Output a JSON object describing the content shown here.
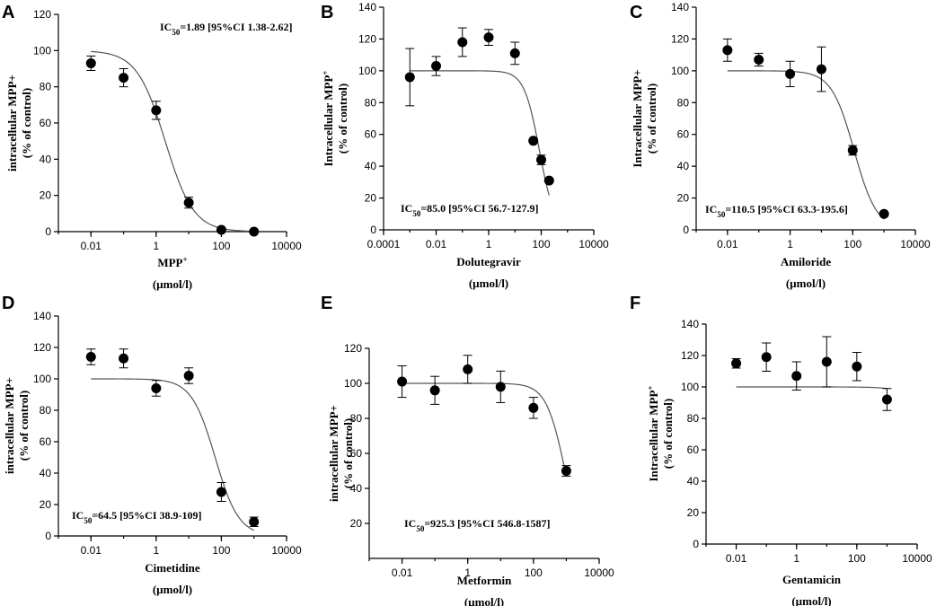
{
  "chart_data": [
    {
      "panel": "A",
      "type": "scatter",
      "xlabel": "MPP",
      "xlabel_sup": "+",
      "xlabel_unit": "(µmol/l)",
      "ylabel_line1": "intracellular MPP+",
      "ylabel_line1_sup": "",
      "ylabel_line2": "(% of control)",
      "ylim": [
        0,
        120
      ],
      "yticks": [
        "0",
        "20",
        "40",
        "60",
        "80",
        "100",
        "120"
      ],
      "xticks": [
        "0.01",
        "1",
        "100",
        "10000"
      ],
      "annotation": {
        "pre": "IC",
        "sub": "50",
        "post": "=1.89 [95%CI 1.38-2.62]"
      },
      "points": [
        {
          "x": 0.01,
          "y": 93,
          "err": 4
        },
        {
          "x": 0.1,
          "y": 85,
          "err": 5
        },
        {
          "x": 1,
          "y": 67,
          "err": 5
        },
        {
          "x": 10,
          "y": 16,
          "err": 3
        },
        {
          "x": 100,
          "y": 1,
          "err": 1
        },
        {
          "x": 1000,
          "y": 0,
          "err": 0
        }
      ],
      "fit": {
        "top": 100,
        "bottom": 0,
        "ic50": 1.89,
        "hill": 1.0
      }
    },
    {
      "panel": "B",
      "type": "scatter",
      "xlabel": "Dolutegravir",
      "xlabel_sup": "",
      "xlabel_unit": "(µmol/l)",
      "ylabel_line1": "Intracellular MPP",
      "ylabel_line1_sup": "+",
      "ylabel_line2": "(% of control)",
      "ylim": [
        0,
        140
      ],
      "yticks": [
        "0",
        "20",
        "40",
        "60",
        "80",
        "100",
        "120",
        "140"
      ],
      "xticks": [
        "0.0001",
        "0.01",
        "1",
        "100",
        "10000"
      ],
      "annotation": {
        "pre": "IC",
        "sub": "50",
        "post": "=85.0 [95%CI 56.7-127.9]"
      },
      "points": [
        {
          "x": 0.001,
          "y": 96,
          "err": 18
        },
        {
          "x": 0.01,
          "y": 103,
          "err": 6
        },
        {
          "x": 0.1,
          "y": 118,
          "err": 9
        },
        {
          "x": 1,
          "y": 121,
          "err": 5
        },
        {
          "x": 10,
          "y": 111,
          "err": 7
        },
        {
          "x": 50,
          "y": 56,
          "err": 0
        },
        {
          "x": 100,
          "y": 44,
          "err": 3
        },
        {
          "x": 200,
          "y": 31,
          "err": 0
        }
      ],
      "fit": {
        "top": 100,
        "bottom": 0,
        "ic50": 85.0,
        "hill": 1.5
      }
    },
    {
      "panel": "C",
      "type": "scatter",
      "xlabel": "Amiloride",
      "xlabel_sup": "",
      "xlabel_unit": "(µmol/l)",
      "ylabel_line1": "Intracellular MPP+",
      "ylabel_line1_sup": "",
      "ylabel_line2": "(% of control)",
      "ylim": [
        0,
        140
      ],
      "yticks": [
        "0",
        "20",
        "40",
        "60",
        "80",
        "100",
        "120",
        "140"
      ],
      "xticks": [
        "0.01",
        "1",
        "100",
        "10000"
      ],
      "annotation": {
        "pre": "IC",
        "sub": "50",
        "post": "=110.5 [95%CI 63.3-195.6]"
      },
      "points": [
        {
          "x": 0.01,
          "y": 113,
          "err": 7
        },
        {
          "x": 0.1,
          "y": 107,
          "err": 4
        },
        {
          "x": 1,
          "y": 98,
          "err": 8
        },
        {
          "x": 10,
          "y": 101,
          "err": 14
        },
        {
          "x": 100,
          "y": 50,
          "err": 3
        },
        {
          "x": 1000,
          "y": 10,
          "err": 0
        }
      ],
      "fit": {
        "top": 100,
        "bottom": 0,
        "ic50": 110.5,
        "hill": 1.2
      }
    },
    {
      "panel": "D",
      "type": "scatter",
      "xlabel": "Cimetidine",
      "xlabel_sup": "",
      "xlabel_unit": "(µmol/l)",
      "ylabel_line1": "intracellular MPP+",
      "ylabel_line1_sup": "",
      "ylabel_line2": "(% of control)",
      "ylim": [
        0,
        140
      ],
      "yticks": [
        "0",
        "20",
        "40",
        "60",
        "80",
        "100",
        "120",
        "140"
      ],
      "xticks": [
        "0.01",
        "1",
        "100",
        "10000"
      ],
      "annotation": {
        "pre": "IC",
        "sub": "50",
        "post": "=64.5 [95%CI 38.9-109]"
      },
      "points": [
        {
          "x": 0.01,
          "y": 114,
          "err": 5
        },
        {
          "x": 0.1,
          "y": 113,
          "err": 6
        },
        {
          "x": 1,
          "y": 94,
          "err": 5
        },
        {
          "x": 10,
          "y": 102,
          "err": 5
        },
        {
          "x": 100,
          "y": 28,
          "err": 6
        },
        {
          "x": 1000,
          "y": 9,
          "err": 3
        }
      ],
      "fit": {
        "top": 100,
        "bottom": 0,
        "ic50": 64.5,
        "hill": 1.2
      }
    },
    {
      "panel": "E",
      "type": "scatter",
      "xlabel": "Metformin",
      "xlabel_sup": "",
      "xlabel_unit": "(µmol/l)",
      "ylabel_line1": "intracellular MPP+",
      "ylabel_line1_sup": "",
      "ylabel_line2": "(% of control)",
      "ylim": [
        0,
        120
      ],
      "yticks": [
        "20",
        "40",
        "60",
        "80",
        "100",
        "120"
      ],
      "xticks": [
        "0.01",
        "1",
        "100",
        "10000"
      ],
      "annotation": {
        "pre": "IC",
        "sub": "50",
        "post": "=925.3 [95%CI 546.8-1587]"
      },
      "points": [
        {
          "x": 0.01,
          "y": 101,
          "err": 9
        },
        {
          "x": 0.1,
          "y": 96,
          "err": 8
        },
        {
          "x": 1,
          "y": 108,
          "err": 8
        },
        {
          "x": 10,
          "y": 98,
          "err": 9
        },
        {
          "x": 100,
          "y": 86,
          "err": 6
        },
        {
          "x": 1000,
          "y": 50,
          "err": 3
        }
      ],
      "fit": {
        "top": 100,
        "bottom": 0,
        "ic50": 925.3,
        "hill": 1.5
      }
    },
    {
      "panel": "F",
      "type": "scatter",
      "xlabel": "Gentamicin",
      "xlabel_sup": "",
      "xlabel_unit": "(µmol/l)",
      "ylabel_line1": "Intracellular MPP",
      "ylabel_line1_sup": "+",
      "ylabel_line2": "(% of control)",
      "ylim": [
        0,
        140
      ],
      "yticks": [
        "0",
        "20",
        "40",
        "60",
        "80",
        "100",
        "120",
        "140"
      ],
      "xticks": [
        "0.01",
        "1",
        "100",
        "10000"
      ],
      "annotation": null,
      "points": [
        {
          "x": 0.01,
          "y": 115,
          "err": 3
        },
        {
          "x": 0.1,
          "y": 119,
          "err": 9
        },
        {
          "x": 1,
          "y": 107,
          "err": 9
        },
        {
          "x": 10,
          "y": 116,
          "err": 16
        },
        {
          "x": 100,
          "y": 113,
          "err": 9
        },
        {
          "x": 1000,
          "y": 92,
          "err": 7
        }
      ],
      "fit": {
        "top": 100,
        "bottom": 0,
        "ic50": 100000,
        "hill": 1.0
      }
    }
  ]
}
